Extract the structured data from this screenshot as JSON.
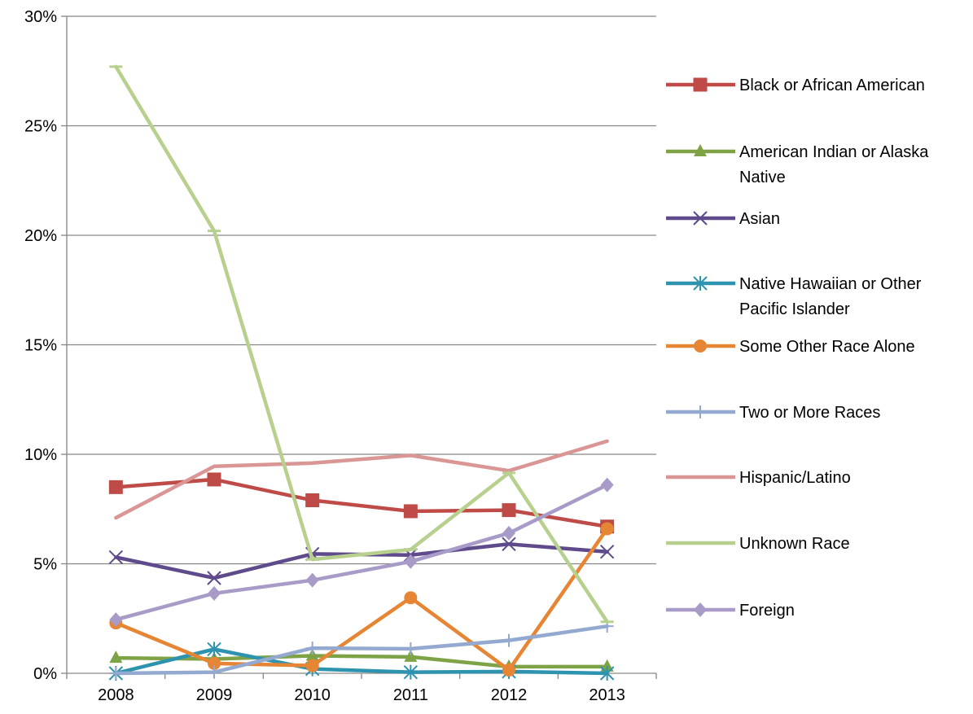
{
  "chart_data": {
    "type": "line",
    "title": "",
    "xlabel": "",
    "ylabel": "",
    "x": [
      "2008",
      "2009",
      "2010",
      "2011",
      "2012",
      "2013"
    ],
    "ylim": [
      0,
      30
    ],
    "yticks": [
      0,
      5,
      10,
      15,
      20,
      25,
      30
    ],
    "ytick_labels": [
      "0%",
      "5%",
      "10%",
      "15%",
      "20%",
      "25%",
      "30%"
    ],
    "grid": "horizontal",
    "legend_position": "right",
    "series": [
      {
        "name": "Black or African American",
        "color": "#BE4B48",
        "marker": "square",
        "values": [
          8.5,
          8.85,
          7.9,
          7.4,
          7.45,
          6.7
        ]
      },
      {
        "name": "American Indian or Alaska Native",
        "color": "#7EA346",
        "marker": "triangle",
        "values": [
          0.7,
          0.65,
          0.8,
          0.75,
          0.3,
          0.3
        ]
      },
      {
        "name": "Asian",
        "color": "#5F4B8B",
        "marker": "x",
        "values": [
          5.3,
          4.35,
          5.45,
          5.4,
          5.9,
          5.55
        ]
      },
      {
        "name": "Native Hawaiian or Other Pacific Islander",
        "color": "#2E93AE",
        "marker": "asterisk",
        "values": [
          0.0,
          1.1,
          0.2,
          0.05,
          0.08,
          0.0
        ]
      },
      {
        "name": "Some Other Race Alone",
        "color": "#E68533",
        "marker": "circle",
        "values": [
          2.3,
          0.45,
          0.35,
          3.45,
          0.15,
          6.6
        ]
      },
      {
        "name": "Two or More Races",
        "color": "#93A9D0",
        "marker": "plus",
        "values": [
          0.0,
          0.05,
          1.15,
          1.12,
          1.5,
          2.15
        ]
      },
      {
        "name": "Hispanic/Latino",
        "color": "#D99694",
        "marker": "none",
        "values": [
          7.1,
          9.45,
          9.6,
          9.95,
          9.25,
          10.6
        ]
      },
      {
        "name": "Unknown Race",
        "color": "#B8D08E",
        "marker": "dash",
        "values": [
          27.7,
          20.2,
          5.2,
          5.65,
          9.15,
          2.35
        ]
      },
      {
        "name": "Foreign",
        "color": "#A99BC8",
        "marker": "diamond",
        "values": [
          2.45,
          3.65,
          4.25,
          5.1,
          6.4,
          8.6
        ]
      }
    ]
  }
}
